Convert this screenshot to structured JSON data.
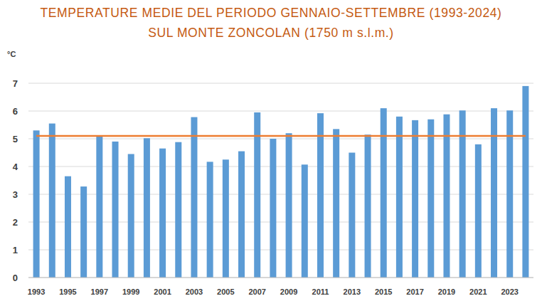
{
  "chart_data": {
    "type": "bar",
    "title": [
      "TEMPERATURE MEDIE DEL PERIODO GENNAIO-SETTEMBRE (1993-2024)",
      "SUL MONTE ZONCOLAN (1750 m s.l.m.)"
    ],
    "y_label": "°C",
    "categories": [
      "1993",
      null,
      "1995",
      null,
      "1997",
      null,
      "1999",
      null,
      "2001",
      null,
      "2003",
      null,
      "2005",
      null,
      "2007",
      null,
      "2009",
      null,
      "2011",
      null,
      "2013",
      null,
      "2015",
      null,
      "2017",
      null,
      "2019",
      null,
      "2021",
      null,
      "2023",
      null
    ],
    "series": [
      {
        "type": "bar",
        "color": "#5b9bd5",
        "values": [
          5.3,
          5.55,
          3.65,
          3.28,
          5.1,
          4.9,
          4.45,
          5.02,
          4.65,
          4.88,
          5.78,
          4.17,
          4.25,
          4.55,
          5.95,
          5.0,
          5.2,
          4.07,
          5.92,
          5.35,
          4.5,
          5.15,
          6.1,
          5.8,
          5.67,
          5.7,
          5.88,
          6.02,
          4.8,
          6.1,
          6.02,
          6.9
        ]
      },
      {
        "type": "line",
        "color": "#ed7d31",
        "values": [
          5.1,
          5.1,
          5.1,
          5.1,
          5.1,
          5.1,
          5.1,
          5.1,
          5.1,
          5.1,
          5.1,
          5.1,
          5.1,
          5.1,
          5.1,
          5.1,
          5.1,
          5.1,
          5.1,
          5.1,
          5.1,
          5.1,
          5.1,
          5.1,
          5.1,
          5.1,
          5.1,
          5.1,
          5.1,
          5.1,
          5.1,
          5.1
        ]
      }
    ],
    "ylim": [
      0,
      7
    ],
    "yticks": [
      0,
      1,
      2,
      3,
      4,
      5,
      6,
      7
    ],
    "grid": true
  }
}
